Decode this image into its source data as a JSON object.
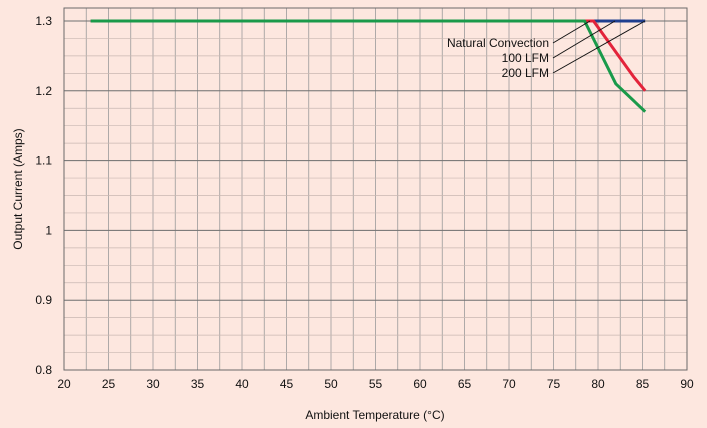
{
  "chart_data": {
    "type": "line",
    "title": "",
    "xlabel": "Ambient Temperature (°C)",
    "ylabel": "Output Current (Amps)",
    "xlim": [
      20,
      90
    ],
    "ylim": [
      0.8,
      1.3
    ],
    "xticks": [
      20,
      25,
      30,
      35,
      40,
      45,
      50,
      55,
      60,
      65,
      70,
      75,
      80,
      85,
      90
    ],
    "xtick_labels": [
      "20",
      "25",
      "30",
      "35",
      "40",
      "45",
      "50",
      "55",
      "60",
      "65",
      "70",
      "75",
      "80",
      "85",
      "90"
    ],
    "yticks": [
      0.8,
      0.9,
      1.0,
      1.1,
      1.2,
      1.3
    ],
    "ytick_labels": [
      "0.8",
      "0.9",
      "1",
      "1.1",
      "1.2",
      "1.3"
    ],
    "minor_x_step": 2.5,
    "minor_y_step": 0.025,
    "grid": true,
    "series": [
      {
        "name": "Natural Convection",
        "color": "#1f3f8f",
        "points": [
          [
            23,
            1.3
          ],
          [
            85.3,
            1.3
          ]
        ]
      },
      {
        "name": "100 LFM",
        "color": "#e3243b",
        "points": [
          [
            23,
            1.3
          ],
          [
            79.5,
            1.3
          ],
          [
            84,
            1.22
          ],
          [
            85.3,
            1.2
          ]
        ]
      },
      {
        "name": "200 LFM",
        "color": "#1a9a4a",
        "points": [
          [
            23,
            1.3
          ],
          [
            78.5,
            1.3
          ],
          [
            82,
            1.21
          ],
          [
            85.3,
            1.17
          ]
        ]
      }
    ],
    "annotations": [
      {
        "text": "Natural Convection",
        "series": "Natural Convection"
      },
      {
        "text": "100 LFM",
        "series": "100 LFM"
      },
      {
        "text": "200 LFM",
        "series": "200 LFM"
      }
    ]
  }
}
